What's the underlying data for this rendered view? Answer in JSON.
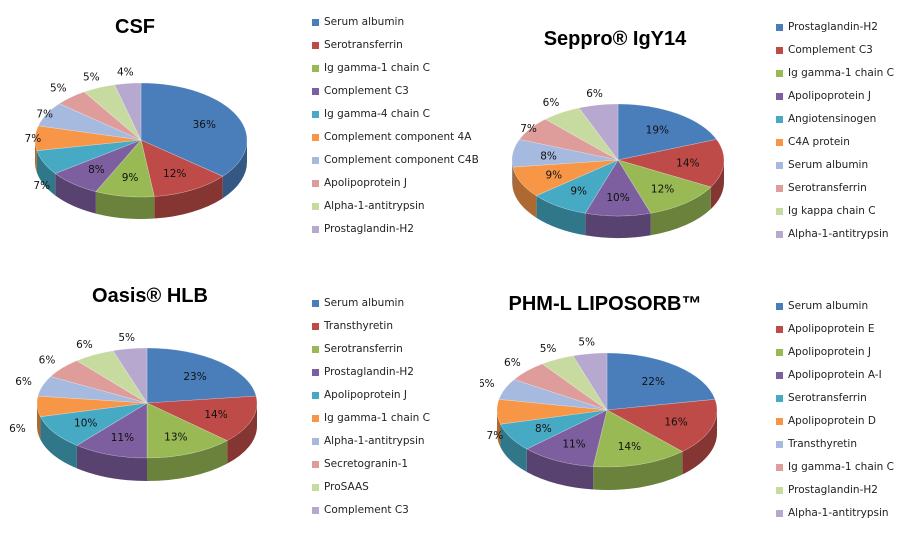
{
  "chart_data": [
    {
      "type": "pie",
      "title": "CSF",
      "labels": [
        "Serum albumin",
        "Serotransferrin",
        "Ig gamma-1 chain C",
        "Complement C3",
        "Ig gamma-4 chain C",
        "Complement component 4A",
        "Complement component C4B",
        "Apolipoprotein J",
        "Alpha-1-antitrypsin",
        "Prostaglandin-H2"
      ],
      "values": [
        36,
        12,
        9,
        8,
        7,
        7,
        7,
        5,
        5,
        4
      ],
      "value_labels": [
        "36%",
        "12%",
        "9%",
        "8%",
        "7%",
        "7%",
        "7%",
        "5%",
        "5%",
        "4%"
      ],
      "colors": [
        "#4a7ebb",
        "#be4b48",
        "#98b954",
        "#7d5fa0",
        "#46aac5",
        "#f79646",
        "#a6b9de",
        "#de9d9b",
        "#c7dba0",
        "#b7a8cf"
      ],
      "legend_position": "right"
    },
    {
      "type": "pie",
      "title": "Seppro® IgY14",
      "labels": [
        "Prostaglandin-H2",
        "Complement C3",
        "Ig gamma-1 chain C",
        "Apolipoprotein J",
        "Angiotensinogen",
        "C4A protein",
        "Serum albumin",
        "Serotransferrin",
        "Ig kappa chain C",
        "Alpha-1-antitrypsin"
      ],
      "values": [
        19,
        14,
        12,
        10,
        9,
        9,
        8,
        7,
        6,
        6
      ],
      "value_labels": [
        "19%",
        "14%",
        "12%",
        "10%",
        "9%",
        "9%",
        "8%",
        "7%",
        "6%",
        "6%"
      ],
      "colors": [
        "#4a7ebb",
        "#be4b48",
        "#98b954",
        "#7d5fa0",
        "#46aac5",
        "#f79646",
        "#a6b9de",
        "#de9d9b",
        "#c7dba0",
        "#b7a8cf"
      ],
      "legend_position": "right"
    },
    {
      "type": "pie",
      "title": "Oasis® HLB",
      "labels": [
        "Serum albumin",
        "Transthyretin",
        "Serotransferrin",
        "Prostaglandin-H2",
        "Apolipoprotein J",
        "Ig gamma-1 chain C",
        "Alpha-1-antitrypsin",
        "Secretogranin-1",
        "ProSAAS",
        "Complement C3"
      ],
      "values": [
        23,
        14,
        13,
        11,
        10,
        6,
        6,
        6,
        6,
        5
      ],
      "value_labels": [
        "23%",
        "14%",
        "13%",
        "11%",
        "10%",
        "6%",
        "6%",
        "6%",
        "6%",
        "5%"
      ],
      "colors": [
        "#4a7ebb",
        "#be4b48",
        "#98b954",
        "#7d5fa0",
        "#46aac5",
        "#f79646",
        "#a6b9de",
        "#de9d9b",
        "#c7dba0",
        "#b7a8cf"
      ],
      "legend_position": "right"
    },
    {
      "type": "pie",
      "title": "PHM-L LIPOSORB™",
      "labels": [
        "Serum albumin",
        "Apolipoprotein E",
        "Apolipoprotein J",
        "Apolipoprotein A-I",
        "Serotransferrin",
        "Apolipoprotein D",
        "Transthyretin",
        "Ig gamma-1 chain C",
        "Prostaglandin-H2",
        "Alpha-1-antitrypsin"
      ],
      "values": [
        22,
        16,
        14,
        11,
        8,
        7,
        6,
        6,
        5,
        5
      ],
      "value_labels": [
        "22%",
        "16%",
        "14%",
        "11%",
        "8%",
        "7%",
        "6%",
        "6%",
        "5%",
        "5%"
      ],
      "colors": [
        "#4a7ebb",
        "#be4b48",
        "#98b954",
        "#7d5fa0",
        "#46aac5",
        "#f79646",
        "#a6b9de",
        "#de9d9b",
        "#c7dba0",
        "#b7a8cf"
      ],
      "legend_position": "right"
    }
  ]
}
